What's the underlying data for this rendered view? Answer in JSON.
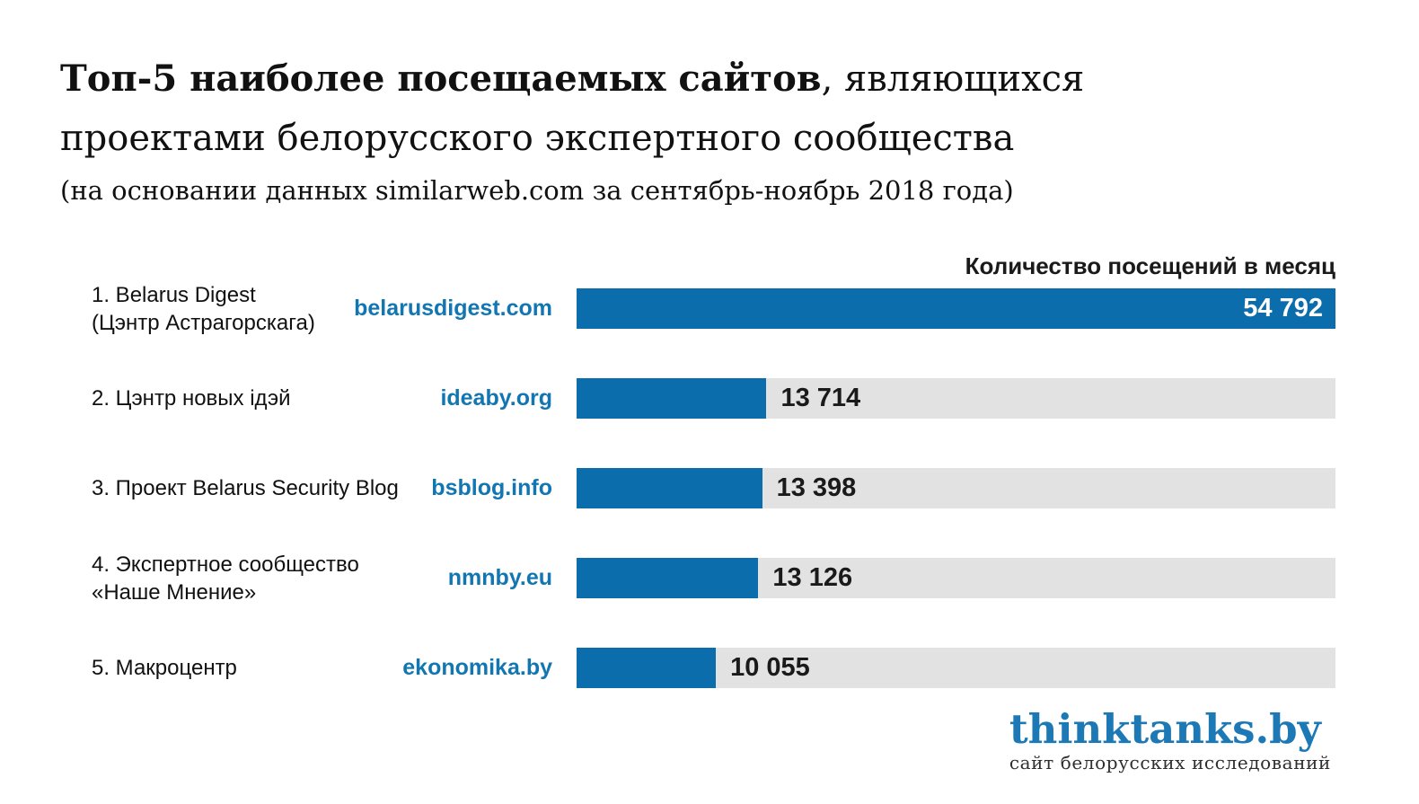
{
  "title": {
    "line1_bold": "Топ-5 наиболее посещаемых сайтов",
    "line1_regular": ", являющихся",
    "line2": "проектами белорусского экспертного сообщества",
    "subtitle": "(на основании данных similarweb.com за сентябрь-ноябрь 2018 года)"
  },
  "chart_data": {
    "type": "bar",
    "orientation": "horizontal",
    "value_axis_header": "Количество посещений в месяц",
    "max_value": 54792,
    "value_range": [
      0,
      54792
    ],
    "legend": "none",
    "grid": false,
    "rows": [
      {
        "rank_label_line1": "1. Belarus Digest",
        "rank_label_line2": "(Цэнтр Астрагорскага)",
        "domain": "belarusdigest.com",
        "value": 54792,
        "value_label": "54 792"
      },
      {
        "rank_label_line1": "2. Цэнтр новых ідэй",
        "rank_label_line2": "",
        "domain": "ideaby.org",
        "value": 13714,
        "value_label": "13 714"
      },
      {
        "rank_label_line1": "3. Проект Belarus Security Blog",
        "rank_label_line2": "",
        "domain": "bsblog.info",
        "value": 13398,
        "value_label": "13 398"
      },
      {
        "rank_label_line1": "4. Экспертное сообщество",
        "rank_label_line2": "«Наше Мнение»",
        "domain": "nmnby.eu",
        "value": 13126,
        "value_label": "13 126"
      },
      {
        "rank_label_line1": "5. Макроцентр",
        "rank_label_line2": "",
        "domain": "ekonomika.by",
        "value": 10055,
        "value_label": "10 055"
      }
    ],
    "colors": {
      "bar_fill": "#0b6dab",
      "bar_track": "#e2e2e2",
      "domain_text": "#1276b2",
      "value_inside_text": "#ffffff",
      "value_outside_text": "#1a1a1a"
    }
  },
  "footer": {
    "logo": "thinktanks.by",
    "tagline": "сайт белорусских исследований"
  }
}
